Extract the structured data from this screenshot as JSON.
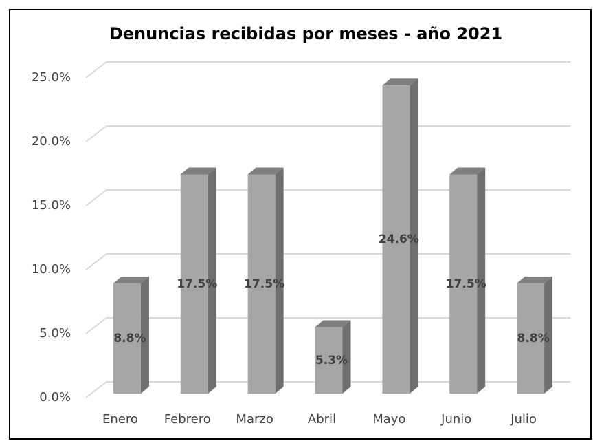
{
  "chart_data": {
    "type": "bar3d",
    "title": "Denuncias recibidas por meses - año 2021",
    "categories": [
      "Enero",
      "Febrero",
      "Marzo",
      "Abril",
      "Mayo",
      "Junio",
      "Julio"
    ],
    "values": [
      8.8,
      17.5,
      17.5,
      5.3,
      24.6,
      17.5,
      8.8
    ],
    "value_labels": [
      "8.8%",
      "17.5%",
      "17.5%",
      "5.3%",
      "24.6%",
      "17.5%",
      "8.8%"
    ],
    "color": "#a6a6a6",
    "ylim": [
      0,
      25
    ],
    "yticks": [
      {
        "value": 0,
        "label": "0.0%"
      },
      {
        "value": 5,
        "label": "5.0%"
      },
      {
        "value": 10,
        "label": "10.0%"
      },
      {
        "value": 15,
        "label": "15.0%"
      },
      {
        "value": 20,
        "label": "20.0%"
      },
      {
        "value": 25,
        "label": "25.0%"
      }
    ],
    "grid": true
  }
}
